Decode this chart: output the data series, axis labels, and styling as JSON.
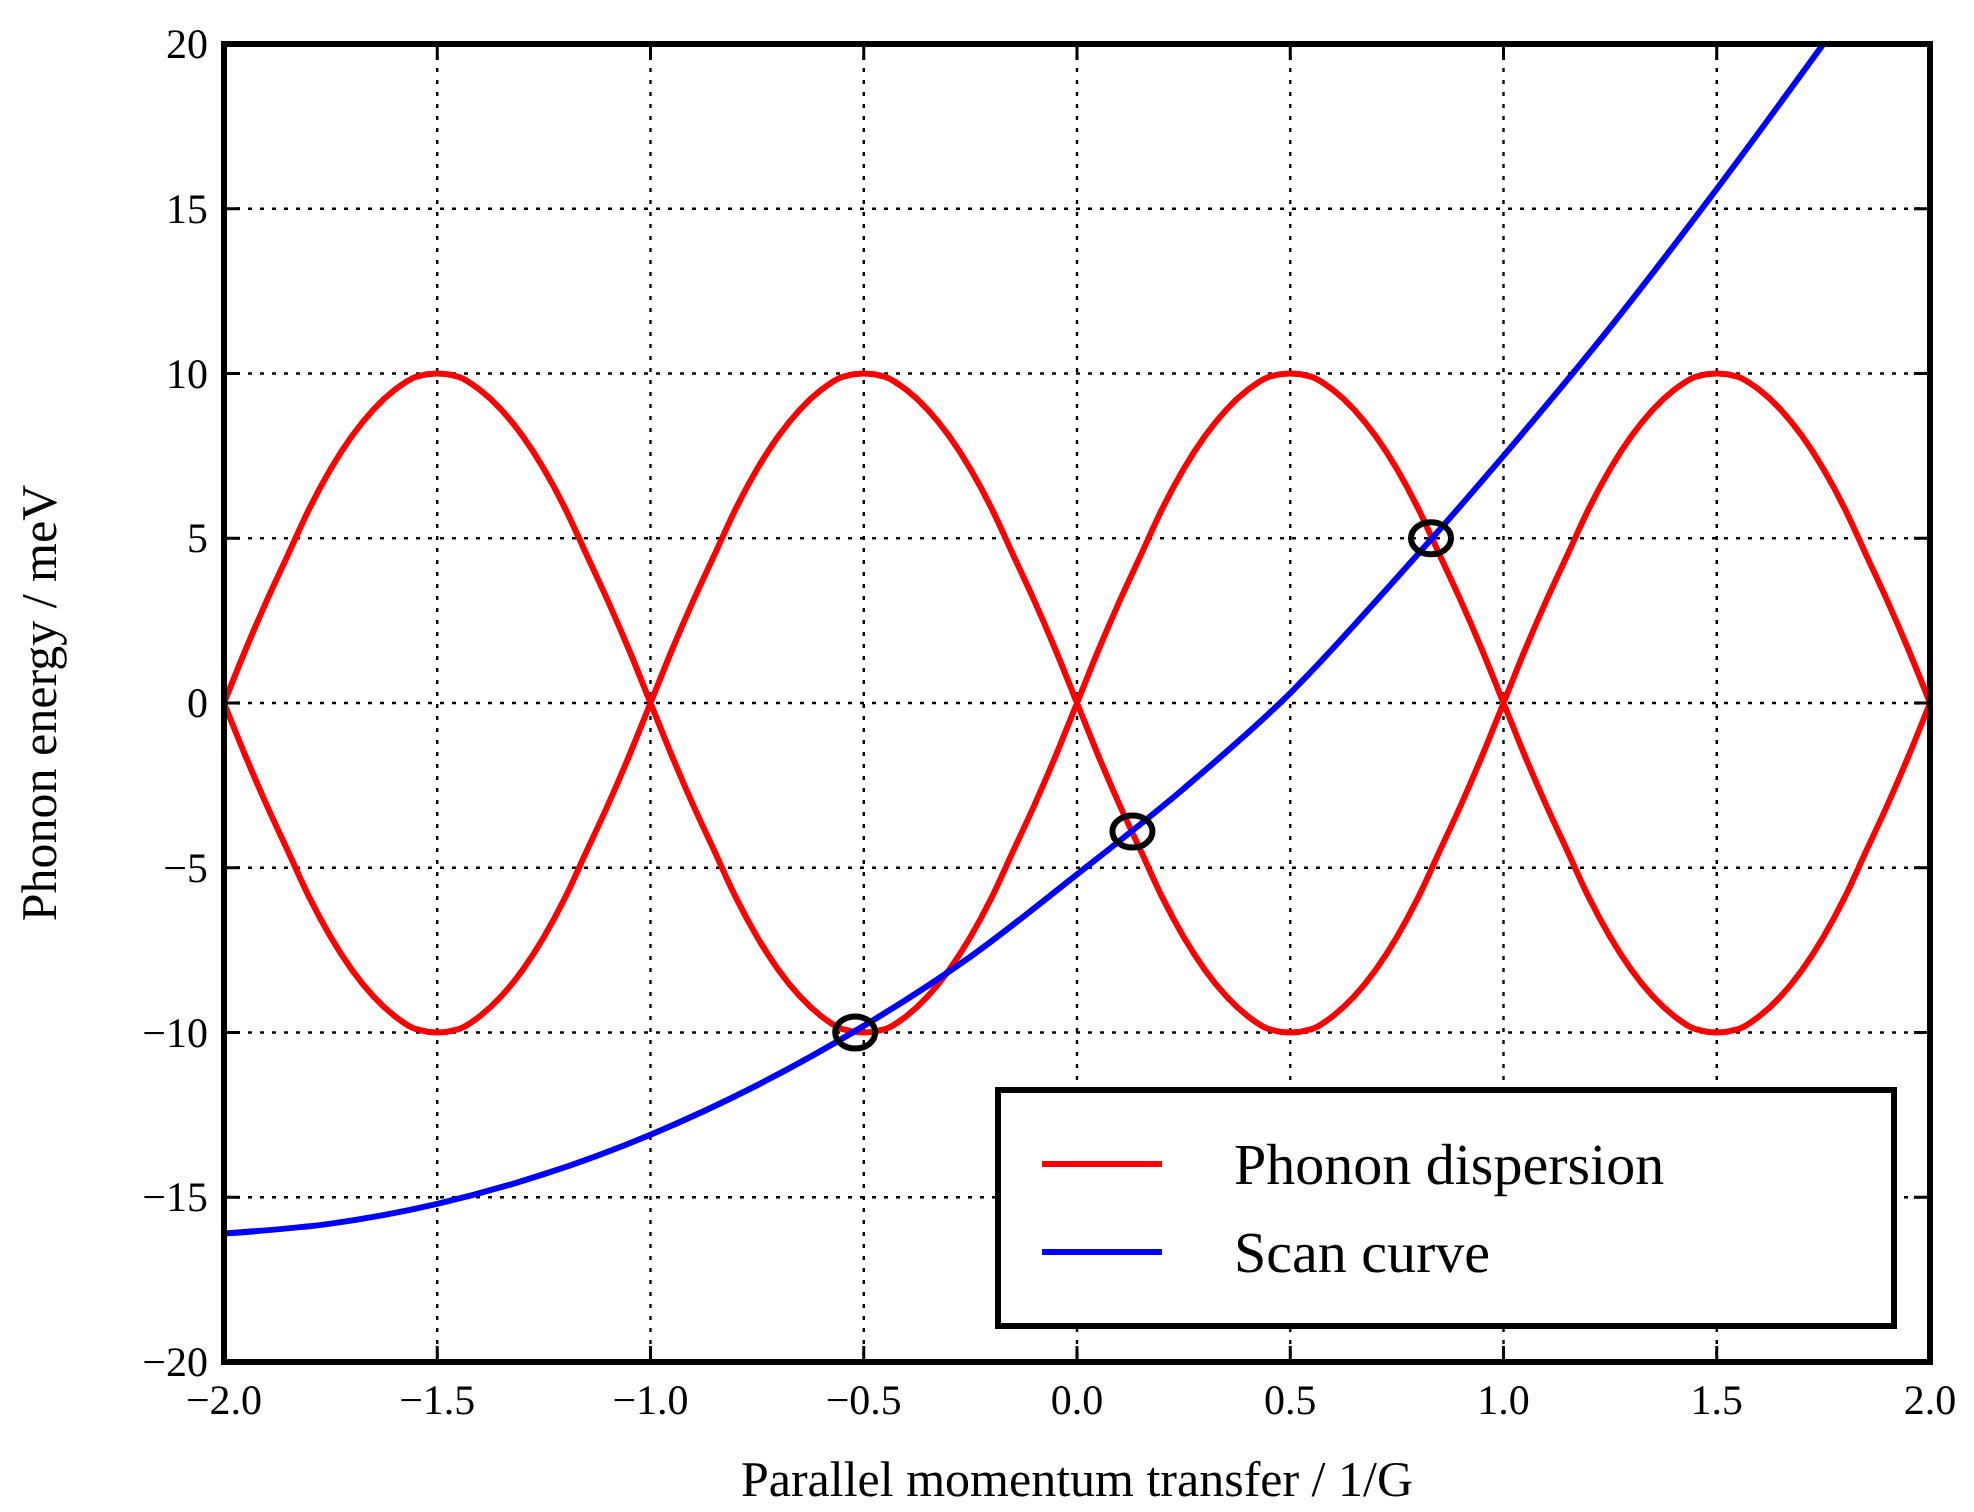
{
  "chart_data": {
    "type": "line",
    "xlabel": "Parallel momentum transfer / 1/G",
    "ylabel": "Phonon energy / meV",
    "series": [
      {
        "name": "Phonon dispersion",
        "color": "#ff0000",
        "x": [
          -2,
          -1.95,
          -1.9,
          -1.85,
          -1.8,
          -1.75,
          -1.7,
          -1.65,
          -1.6,
          -1.55,
          -1.5,
          -1.45,
          -1.4,
          -1.35,
          -1.3,
          -1.25,
          -1.2,
          -1.15,
          -1.1,
          -1.05,
          -1,
          -0.95,
          -0.9,
          -0.85,
          -0.8,
          -0.75,
          -0.7,
          -0.65,
          -0.6,
          -0.55,
          -0.5,
          -0.45,
          -0.4,
          -0.35,
          -0.3,
          -0.25,
          -0.2,
          -0.15,
          -0.1,
          -0.05,
          0,
          0.05,
          0.1,
          0.15,
          0.2,
          0.25,
          0.3,
          0.35,
          0.4,
          0.45,
          0.5,
          0.55,
          0.6,
          0.65,
          0.7,
          0.75,
          0.8,
          0.85,
          0.9,
          0.95,
          1,
          1.05,
          1.1,
          1.15,
          1.2,
          1.25,
          1.3,
          1.35,
          1.4,
          1.45,
          1.5,
          1.55,
          1.6,
          1.65,
          1.7,
          1.75,
          1.8,
          1.85,
          1.9,
          1.95,
          2,
          null,
          -2,
          -1.95,
          -1.9,
          -1.85,
          -1.8,
          -1.75,
          -1.7,
          -1.65,
          -1.6,
          -1.55,
          -1.5,
          -1.45,
          -1.4,
          -1.35,
          -1.3,
          -1.25,
          -1.2,
          -1.15,
          -1.1,
          -1.05,
          -1,
          -0.95,
          -0.9,
          -0.85,
          -0.8,
          -0.75,
          -0.7,
          -0.65,
          -0.6,
          -0.55,
          -0.5,
          -0.45,
          -0.4,
          -0.35,
          -0.3,
          -0.25,
          -0.2,
          -0.15,
          -0.1,
          -0.05,
          0,
          0.05,
          0.1,
          0.15,
          0.2,
          0.25,
          0.3,
          0.35,
          0.4,
          0.45,
          0.5,
          0.55,
          0.6,
          0.65,
          0.7,
          0.75,
          0.8,
          0.85,
          0.9,
          0.95,
          1,
          1.05,
          1.1,
          1.15,
          1.2,
          1.25,
          1.3,
          1.35,
          1.4,
          1.45,
          1.5,
          1.55,
          1.6,
          1.65,
          1.7,
          1.75,
          1.8,
          1.85,
          1.9,
          1.95,
          2
        ],
        "values": [
          0,
          1.6,
          3.1,
          4.5,
          5.9,
          7.1,
          8.1,
          8.9,
          9.5,
          9.9,
          10,
          9.9,
          9.5,
          8.9,
          8.1,
          7.1,
          5.9,
          4.5,
          3.1,
          1.6,
          0,
          -1.6,
          -3.1,
          -4.5,
          -5.9,
          -7.1,
          -8.1,
          -8.9,
          -9.5,
          -9.9,
          -10,
          -9.9,
          -9.5,
          -8.9,
          -8.1,
          -7.1,
          -5.9,
          -4.5,
          -3.1,
          -1.6,
          0,
          1.6,
          3.1,
          4.5,
          5.9,
          7.1,
          8.1,
          8.9,
          9.5,
          9.9,
          10,
          9.9,
          9.5,
          8.9,
          8.1,
          7.1,
          5.9,
          4.5,
          3.1,
          1.6,
          0,
          -1.6,
          -3.1,
          -4.5,
          -5.9,
          -7.1,
          -8.1,
          -8.9,
          -9.5,
          -9.9,
          -10,
          -9.9,
          -9.5,
          -8.9,
          -8.1,
          -7.1,
          -5.9,
          -4.5,
          -3.1,
          -1.6,
          0,
          null,
          0,
          -1.6,
          -3.1,
          -4.5,
          -5.9,
          -7.1,
          -8.1,
          -8.9,
          -9.5,
          -9.9,
          -10,
          -9.9,
          -9.5,
          -8.9,
          -8.1,
          -7.1,
          -5.9,
          -4.5,
          -3.1,
          -1.6,
          0,
          1.6,
          3.1,
          4.5,
          5.9,
          7.1,
          8.1,
          8.9,
          9.5,
          9.9,
          10,
          9.9,
          9.5,
          8.9,
          8.1,
          7.1,
          5.9,
          4.5,
          3.1,
          1.6,
          0,
          -1.6,
          -3.1,
          -4.5,
          -5.9,
          -7.1,
          -8.1,
          -8.9,
          -9.5,
          -9.9,
          -10,
          -9.9,
          -9.5,
          -8.9,
          -8.1,
          -7.1,
          -5.9,
          -4.5,
          -3.1,
          -1.6,
          0,
          1.6,
          3.1,
          4.5,
          5.9,
          7.1,
          8.1,
          8.9,
          9.5,
          9.9,
          10,
          9.9,
          9.5,
          8.9,
          8.1,
          7.1,
          5.9,
          4.5,
          3.1,
          1.6,
          0
        ]
      },
      {
        "name": "Scan curve",
        "color": "#0000ff",
        "x": [
          -2,
          -1.75,
          -1.5,
          -1.25,
          -1,
          -0.75,
          -0.5,
          -0.25,
          0,
          0.25,
          0.5,
          0.75,
          1,
          1.25,
          1.5,
          1.75
        ],
        "values": [
          -16.1,
          -15.8,
          -15.2,
          -14.3,
          -13.1,
          -11.6,
          -9.8,
          -7.7,
          -5.2,
          -2.6,
          0.3,
          3.8,
          7.5,
          11.4,
          15.6,
          20
        ]
      },
      {
        "type": "scatter",
        "marker": "circle",
        "color": "#000000",
        "x": [
          -0.52,
          0.13,
          0.83
        ],
        "values": [
          -10,
          -3.9,
          5
        ]
      }
    ],
    "xlim": [
      -2,
      2
    ],
    "ylim": [
      -20,
      20
    ],
    "xticks": [
      {
        "value": -2,
        "label": "−2.0"
      },
      {
        "value": -1.5,
        "label": "−1.5"
      },
      {
        "value": -1,
        "label": "−1.0"
      },
      {
        "value": -0.5,
        "label": "−0.5"
      },
      {
        "value": 0,
        "label": "0.0"
      },
      {
        "value": 0.5,
        "label": "0.5"
      },
      {
        "value": 1,
        "label": "1.0"
      },
      {
        "value": 1.5,
        "label": "1.5"
      },
      {
        "value": 2,
        "label": "2.0"
      }
    ],
    "yticks": [
      {
        "value": -20,
        "label": "−20"
      },
      {
        "value": -15,
        "label": "−15"
      },
      {
        "value": -10,
        "label": "−10"
      },
      {
        "value": -5,
        "label": "−5"
      },
      0,
      5,
      10,
      15,
      20
    ],
    "grid": true,
    "legend": "bottom right",
    "line_style": "solid"
  }
}
